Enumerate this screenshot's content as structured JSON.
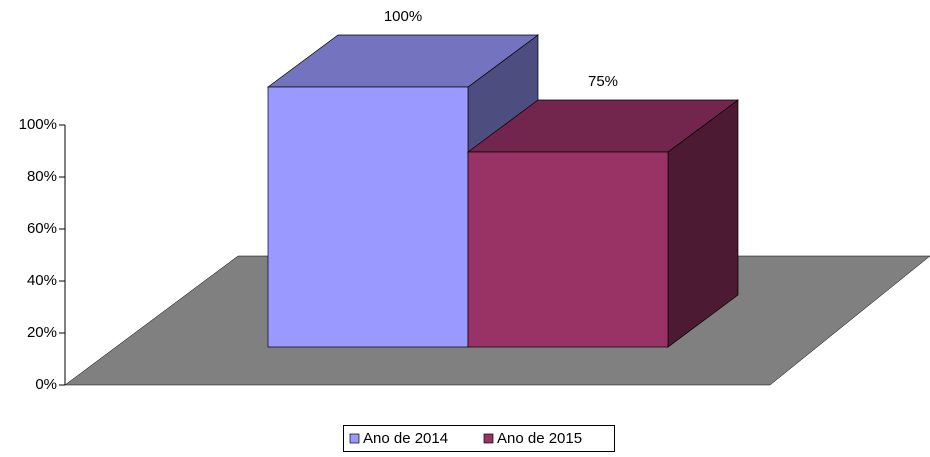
{
  "chart_data": {
    "type": "bar3d",
    "series": [
      {
        "name": "Ano de 2014",
        "color": "#9999ff",
        "values": [
          100
        ],
        "value_labels": [
          "100%"
        ]
      },
      {
        "name": "Ano de 2015",
        "color": "#993366",
        "values": [
          75
        ],
        "value_labels": [
          "75%"
        ]
      }
    ],
    "ylim": [
      0,
      100
    ],
    "yticks": [
      {
        "value": 0,
        "label": "0%"
      },
      {
        "value": 20,
        "label": "20%"
      },
      {
        "value": 40,
        "label": "40%"
      },
      {
        "value": 60,
        "label": "60%"
      },
      {
        "value": 80,
        "label": "80%"
      },
      {
        "value": 100,
        "label": "100%"
      }
    ],
    "legend": "bottom"
  }
}
